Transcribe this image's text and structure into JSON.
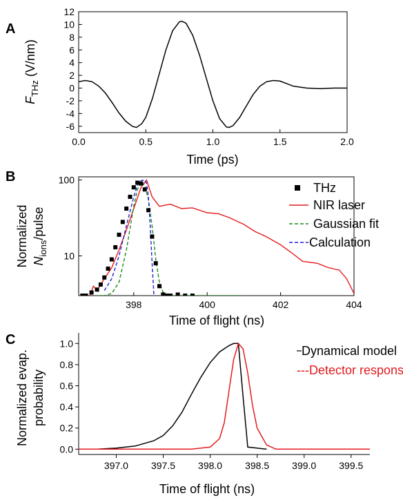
{
  "panels": [
    "A",
    "B",
    "C"
  ],
  "chart_data": [
    {
      "type": "line",
      "panel": "A",
      "ylabel_main": "F",
      "ylabel_sub": "THz",
      "ylabel_unit": " (V/nm)",
      "xlabel": "Time (ps)",
      "xlim": [
        0,
        2.0
      ],
      "ylim": [
        -7,
        12
      ],
      "xticks": [
        "0.0",
        "0.5",
        "1.0",
        "1.5",
        "2.0"
      ],
      "xtick_values": [
        0,
        0.5,
        1.0,
        1.5,
        2.0
      ],
      "yticks": [
        "-6",
        "-4",
        "-2",
        "0",
        "2",
        "4",
        "6",
        "8",
        "10",
        "12"
      ],
      "ytick_values": [
        -6,
        -4,
        -2,
        0,
        2,
        4,
        6,
        8,
        10,
        12
      ],
      "line_color": "#000000",
      "series": [
        {
          "x": [
            0.0,
            0.05,
            0.1,
            0.15,
            0.2,
            0.25,
            0.3,
            0.35,
            0.4,
            0.43,
            0.47,
            0.5,
            0.55,
            0.6,
            0.65,
            0.7,
            0.75,
            0.77,
            0.8,
            0.85,
            0.9,
            0.95,
            1.0,
            1.05,
            1.1,
            1.12,
            1.15,
            1.2,
            1.25,
            1.3,
            1.35,
            1.4,
            1.45,
            1.5,
            1.55,
            1.6,
            1.7,
            1.8,
            1.9,
            2.0
          ],
          "values": [
            1.0,
            1.2,
            1.0,
            0.3,
            -0.8,
            -2.3,
            -3.9,
            -5.2,
            -6.0,
            -6.2,
            -5.6,
            -4.6,
            -1.6,
            2.2,
            6.0,
            9.0,
            10.4,
            10.5,
            10.2,
            8.3,
            5.2,
            1.6,
            -2.0,
            -4.8,
            -6.1,
            -6.2,
            -5.9,
            -4.6,
            -2.8,
            -1.0,
            0.3,
            1.0,
            1.2,
            1.1,
            0.7,
            0.3,
            0.0,
            -0.1,
            0.0,
            0.0
          ]
        }
      ]
    },
    {
      "type": "line",
      "panel": "B",
      "ylabel_line1": "Normalized",
      "ylabel_line2_main": "N",
      "ylabel_line2_sub": "ions",
      "ylabel_line2_rest": "/pulse",
      "xlabel": "Time of flight (ns)",
      "xlim": [
        396.5,
        404
      ],
      "ylim": [
        3,
        110
      ],
      "y_scale": "log",
      "xticks": [
        "398",
        "400",
        "402",
        "404"
      ],
      "xtick_values": [
        398,
        400,
        402,
        404
      ],
      "yticks": [
        "10",
        "100"
      ],
      "ytick_values": [
        10,
        100
      ],
      "legend_position": "right",
      "series": [
        {
          "name": "THz",
          "style": "markers",
          "color": "#000000",
          "x": [
            396.6,
            396.7,
            396.85,
            397.0,
            397.1,
            397.2,
            397.3,
            397.4,
            397.5,
            397.6,
            397.7,
            397.8,
            397.9,
            398.0,
            398.1,
            398.2,
            398.3,
            398.4,
            398.5,
            398.6,
            398.7,
            398.8,
            398.9,
            399.0,
            399.2,
            399.4,
            399.6
          ],
          "values": [
            3.0,
            3.0,
            3.3,
            3.6,
            4.2,
            5.2,
            6.8,
            9.0,
            13.0,
            19.0,
            28.0,
            42.0,
            60.0,
            80.0,
            92.0,
            90.0,
            75.0,
            40.0,
            18.0,
            8.0,
            4.0,
            3.1,
            3.0,
            3.0,
            3.1,
            3.0,
            3.0
          ]
        },
        {
          "name": "NIR laser",
          "style": "solid",
          "color": "#e41a1c",
          "x": [
            396.8,
            396.9,
            397.0,
            397.2,
            397.4,
            397.6,
            397.8,
            398.0,
            398.2,
            398.35,
            398.5,
            398.7,
            399.0,
            399.3,
            399.6,
            400.0,
            400.3,
            400.6,
            401.0,
            401.3,
            401.6,
            402.0,
            402.3,
            402.6,
            403.0,
            403.3,
            403.6,
            403.8,
            404.0
          ],
          "values": [
            3.0,
            4.0,
            3.5,
            5.0,
            7.0,
            12.0,
            22.0,
            42.0,
            80.0,
            100.0,
            60.0,
            45.0,
            48.0,
            42.0,
            43.0,
            37.0,
            36.0,
            32.0,
            26.0,
            21.0,
            18.0,
            14.0,
            11.0,
            8.5,
            8.0,
            7.0,
            6.5,
            5.0,
            3.2
          ]
        },
        {
          "name": "Gaussian fit",
          "style": "dashed",
          "color": "#1a8a1a",
          "x": [
            397.0,
            397.2,
            397.4,
            397.6,
            397.8,
            398.0,
            398.1,
            398.2,
            398.3,
            398.4,
            398.5,
            398.6,
            398.7,
            398.8,
            399.0,
            399.5,
            400.0,
            400.5,
            401.0
          ],
          "values": [
            3.0,
            3.0,
            3.2,
            4.5,
            12.0,
            45.0,
            75.0,
            95.0,
            85.0,
            55.0,
            25.0,
            9.0,
            4.5,
            3.3,
            3.0,
            3.0,
            3.0,
            3.0,
            3.0
          ]
        },
        {
          "name": "Calculation",
          "style": "dashed",
          "color": "#1f1fd6",
          "x": [
            397.2,
            397.4,
            397.6,
            397.8,
            398.0,
            398.1,
            398.2,
            398.3,
            398.35,
            398.4,
            398.45,
            398.5,
            398.55
          ],
          "values": [
            3.5,
            5.0,
            10.0,
            25.0,
            60.0,
            85.0,
            98.0,
            100.0,
            90.0,
            60.0,
            25.0,
            8.0,
            3.0
          ]
        }
      ]
    },
    {
      "type": "line",
      "panel": "C",
      "ylabel_line1": "Normalized evap.",
      "ylabel_line2": "probability",
      "xlabel": "Time of flight (ns)",
      "xlim": [
        396.6,
        399.7
      ],
      "ylim": [
        -0.05,
        1.1
      ],
      "xticks": [
        "397.0",
        "397.5",
        "398.0",
        "398.5",
        "399.0",
        "399.5"
      ],
      "xtick_values": [
        397.0,
        397.5,
        398.0,
        398.5,
        399.0,
        399.5
      ],
      "yticks": [
        "0.0",
        "0.2",
        "0.4",
        "0.6",
        "0.8",
        "1.0"
      ],
      "ytick_values": [
        0.0,
        0.2,
        0.4,
        0.6,
        0.8,
        1.0
      ],
      "legend_position": "right",
      "series": [
        {
          "name": "Dynamical model",
          "legend_label": "Dynamical model",
          "style": "solid",
          "color": "#000000",
          "x": [
            396.8,
            397.0,
            397.2,
            397.4,
            397.5,
            397.6,
            397.7,
            397.8,
            397.9,
            398.0,
            398.1,
            398.2,
            398.25,
            398.3,
            398.35,
            398.4,
            398.5,
            398.6
          ],
          "values": [
            0.0,
            0.01,
            0.03,
            0.08,
            0.13,
            0.22,
            0.35,
            0.52,
            0.68,
            0.82,
            0.92,
            0.98,
            1.0,
            1.0,
            0.5,
            0.02,
            0.01,
            0.0
          ]
        },
        {
          "name": "Detector response",
          "legend_label": "---Detector response",
          "style": "solid",
          "color": "#e41a1c",
          "x": [
            396.6,
            397.8,
            398.0,
            398.1,
            398.15,
            398.2,
            398.25,
            398.3,
            398.35,
            398.4,
            398.45,
            398.5,
            398.6,
            398.7,
            399.7
          ],
          "values": [
            0.0,
            0.0,
            0.02,
            0.1,
            0.25,
            0.55,
            0.85,
            1.0,
            0.95,
            0.72,
            0.42,
            0.2,
            0.04,
            0.0,
            0.0
          ]
        }
      ]
    }
  ]
}
